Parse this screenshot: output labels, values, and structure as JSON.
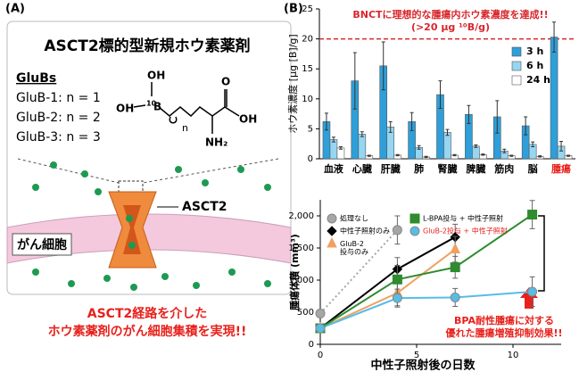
{
  "panel_a": {
    "label": "(A)",
    "title": "ASCT2標的型新規ホウ素薬剤",
    "subtitle": "GluBs",
    "compounds": [
      "GluB-1: n = 1",
      "GluB-2: n = 2",
      "GluB-3: n = 3"
    ],
    "structure": {
      "oh_top": "OH",
      "isotope": "10",
      "boron": "B",
      "oh_left": "OH",
      "n": "n",
      "oxygen": "O",
      "oh_acid": "OH",
      "amine": "NH₂"
    },
    "transporter": "ASCT2",
    "cell": "がん細胞",
    "caption": [
      "ASCT2経路を介した",
      "ホウ素薬剤のがん細胞集積を実現!!"
    ]
  },
  "panel_b": {
    "label": "(B)"
  },
  "chart_data": [
    {
      "type": "bar",
      "title": [
        "BNCTに理想的な腫瘍内ホウ素濃度を達成!!",
        "(>20 μg ¹⁰B/g)"
      ],
      "y_label": "ホウ素濃度 [μg [B]/g]",
      "categories": [
        "血液",
        "心臓",
        "肝臓",
        "肺",
        "腎臓",
        "脾臓",
        "筋肉",
        "脳",
        "腫瘍"
      ],
      "highlight_category": 8,
      "highlight_color": "#e8211c",
      "threshold": 20,
      "threshold_color": "#d9262c",
      "ylim": [
        0,
        25
      ],
      "yticks": [
        0,
        5,
        10,
        15,
        20,
        25
      ],
      "legend": "upper right",
      "series": [
        {
          "name": "3 h",
          "color": "#2e9fd9",
          "values": [
            6.2,
            13.0,
            15.5,
            6.2,
            10.7,
            7.4,
            7.0,
            5.5,
            20.3
          ],
          "errors": [
            1.4,
            4.7,
            4.0,
            1.5,
            2.3,
            1.5,
            2.7,
            1.5,
            2.5
          ]
        },
        {
          "name": "6 h",
          "color": "#96d6f2",
          "values": [
            3.2,
            4.1,
            5.3,
            1.9,
            4.4,
            2.1,
            1.3,
            2.4,
            2.1
          ],
          "errors": [
            0.4,
            0.4,
            0.9,
            0.3,
            0.5,
            0.2,
            0.3,
            0.4,
            0.8
          ]
        },
        {
          "name": "24 h",
          "color": "#ffffff",
          "values": [
            1.8,
            0.5,
            0.6,
            0.3,
            0.6,
            0.7,
            0.5,
            0.4,
            0.5
          ],
          "errors": [
            0.2,
            0.1,
            0.1,
            0.1,
            0.1,
            0.1,
            0.1,
            0.1,
            0.1
          ]
        }
      ]
    },
    {
      "type": "line",
      "x_label": "中性子照射後の日数",
      "y_label": "腫瘍体積 (mm³)",
      "xlim": [
        0,
        12.5
      ],
      "xticks": [
        0,
        5,
        10
      ],
      "ylim": [
        0,
        2250
      ],
      "yticks": [
        0,
        500,
        {
          "value": 1000,
          "label": "1,000"
        },
        {
          "value": 1500,
          "label": "1,500"
        },
        {
          "value": 2000,
          "label": "2,000"
        }
      ],
      "annotation": [
        "BPA耐性腫瘍に対する",
        "優れた腫瘍増殖抑制効果!!"
      ],
      "series": [
        {
          "name": "処理なし",
          "color": "#a6a6a6",
          "dash": true,
          "marker": "circle",
          "x": [
            0,
            4
          ],
          "values": [
            480,
            1780
          ],
          "errors": [
            60,
            220
          ]
        },
        {
          "name": "中性子照射のみ",
          "color": "#000000",
          "marker": "diamond",
          "x": [
            0,
            4,
            7
          ],
          "values": [
            250,
            1170,
            1670
          ],
          "errors": [
            40,
            180,
            200
          ]
        },
        {
          "name": "GluB-2\n投与のみ",
          "color": "#f0a060",
          "marker": "triangle",
          "x": [
            0,
            4,
            7
          ],
          "values": [
            250,
            800,
            1480
          ],
          "errors": [
            40,
            200,
            200
          ]
        },
        {
          "name": "L-BPA投与 + 中性子照射",
          "color": "#2e8b2e",
          "marker": "square",
          "x": [
            0,
            4,
            7,
            11
          ],
          "values": [
            250,
            1010,
            1200,
            2020
          ],
          "errors": [
            40,
            220,
            170,
            220
          ]
        },
        {
          "name": "GluB-2投与 + 中性子照射",
          "color": "#56bde6",
          "marker": "circle",
          "x": [
            0,
            4,
            7,
            11
          ],
          "values": [
            250,
            720,
            730,
            820
          ],
          "errors": [
            40,
            140,
            140,
            230
          ]
        }
      ]
    }
  ]
}
